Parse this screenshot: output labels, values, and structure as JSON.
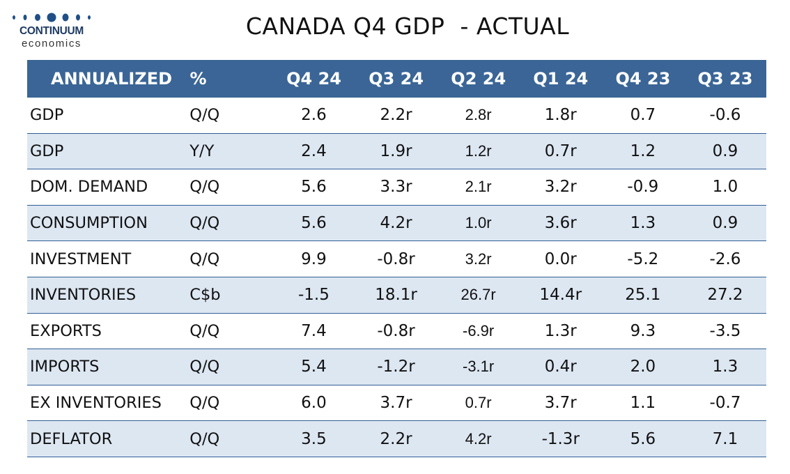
{
  "logo": {
    "name": "CONTINUUM",
    "sub": "economics"
  },
  "title": "CANADA Q4 GDP  - ACTUAL",
  "chart_data": {
    "type": "table",
    "title": "CANADA Q4 GDP  - ACTUAL",
    "columns": [
      "ANNUALIZED",
      "%",
      "Q4 24",
      "Q3 24",
      "Q2 24",
      "Q1 24",
      "Q4 23",
      "Q3 23"
    ],
    "rows": [
      {
        "label": "GDP",
        "unit": "Q/Q",
        "values": [
          "2.6",
          "2.2r",
          "2.8r",
          "1.8r",
          "0.7",
          "-0.6"
        ]
      },
      {
        "label": "GDP",
        "unit": "Y/Y",
        "values": [
          "2.4",
          "1.9r",
          "1.2r",
          "0.7r",
          "1.2",
          "0.9"
        ]
      },
      {
        "label": "DOM. DEMAND",
        "unit": "Q/Q",
        "values": [
          "5.6",
          "3.3r",
          "2.1r",
          "3.2r",
          "-0.9",
          "1.0"
        ]
      },
      {
        "label": "CONSUMPTION",
        "unit": "Q/Q",
        "values": [
          "5.6",
          "4.2r",
          "1.0r",
          "3.6r",
          "1.3",
          "0.9"
        ]
      },
      {
        "label": "INVESTMENT",
        "unit": "Q/Q",
        "values": [
          "9.9",
          "-0.8r",
          "3.2r",
          "0.0r",
          "-5.2",
          "-2.6"
        ]
      },
      {
        "label": "INVENTORIES",
        "unit": "C$b",
        "values": [
          "-1.5",
          "18.1r",
          "26.7r",
          "14.4r",
          "25.1",
          "27.2"
        ]
      },
      {
        "label": "EXPORTS",
        "unit": "Q/Q",
        "values": [
          "7.4",
          "-0.8r",
          "-6.9r",
          "1.3r",
          "9.3",
          "-3.5"
        ]
      },
      {
        "label": "IMPORTS",
        "unit": "Q/Q",
        "values": [
          "5.4",
          "-1.2r",
          "-3.1r",
          "0.4r",
          "2.0",
          "1.3"
        ]
      },
      {
        "label": "EX INVENTORIES",
        "unit": "Q/Q",
        "values": [
          "6.0",
          "3.7r",
          "0.7r",
          "3.7r",
          "1.1",
          "-0.7"
        ]
      },
      {
        "label": "DEFLATOR",
        "unit": "Q/Q",
        "values": [
          "3.5",
          "2.2r",
          "4.2r",
          "-1.3r",
          "5.6",
          "7.1"
        ]
      }
    ]
  },
  "colors": {
    "header_bg": "#3a6596",
    "alt_row_bg": "#dde7f2",
    "rule": "#2f5e94",
    "logo_blue": "#1f4f86"
  }
}
